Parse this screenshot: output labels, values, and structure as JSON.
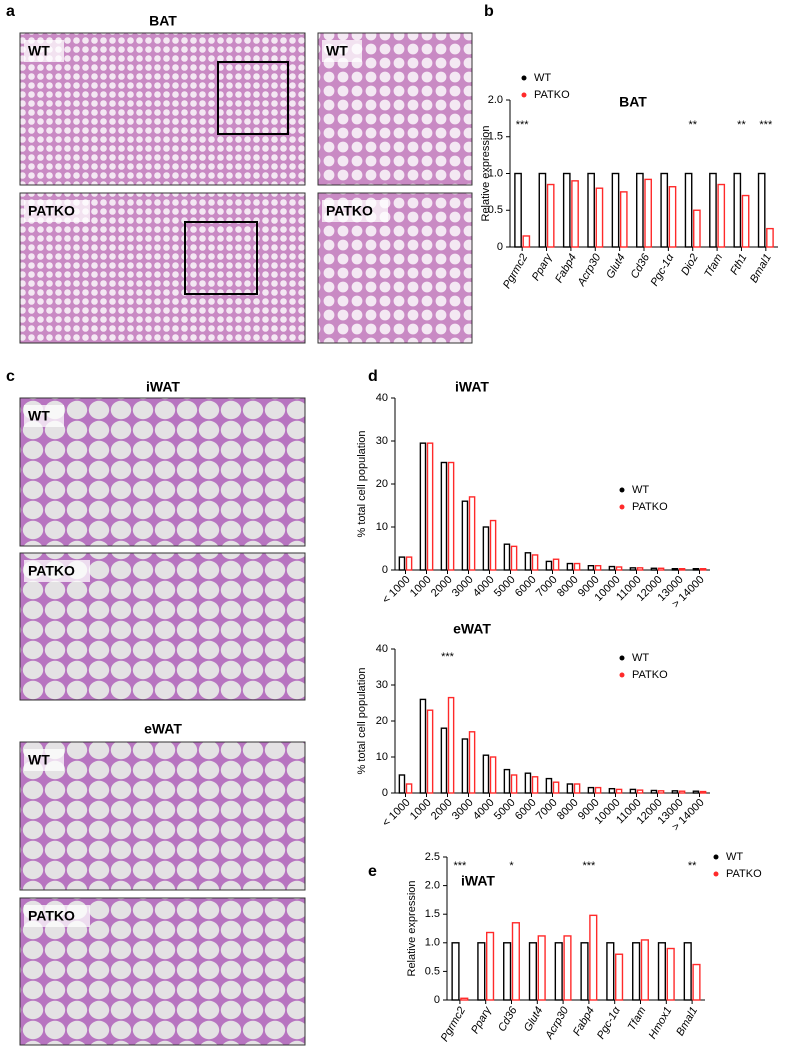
{
  "figure": {
    "panel_labels": [
      "a",
      "b",
      "c",
      "d",
      "e"
    ],
    "a": {
      "title": "BAT",
      "images": [
        "WT",
        "WT",
        "PATKO",
        "PATKO"
      ]
    },
    "c": {
      "titles": [
        "iWAT",
        "eWAT"
      ],
      "images": [
        "WT",
        "PATKO",
        "WT",
        "PATKO"
      ]
    }
  },
  "chart_data": [
    {
      "type": "bar",
      "title": "BAT",
      "ylabel": "Relative expression",
      "categories": [
        "Pgrmc2",
        "Pparγ",
        "Fabp4",
        "Acrp30",
        "Glut4",
        "Cd36",
        "Pgc-1α",
        "Dio2",
        "Tfam",
        "Fth1",
        "Bmal1"
      ],
      "series": [
        {
          "name": "WT",
          "color": "#000000",
          "values": [
            1.0,
            1.0,
            1.0,
            1.0,
            1.0,
            1.0,
            1.0,
            1.0,
            1.0,
            1.0,
            1.0
          ]
        },
        {
          "name": "PATKO",
          "color": "#ff2a2a",
          "values": [
            0.15,
            0.85,
            0.9,
            0.8,
            0.75,
            0.92,
            0.82,
            0.5,
            0.85,
            0.7,
            0.25
          ]
        }
      ],
      "ylim": [
        0,
        2
      ],
      "yticks": [
        0,
        0.5,
        {
          "value": 1,
          "label": "1.0"
        },
        1.5,
        {
          "value": 2,
          "label": "2.0"
        }
      ],
      "legend": "upper left",
      "annotations": [
        {
          "label": "***",
          "category": "Pgrmc2"
        },
        {
          "label": "**",
          "category": "Dio2"
        },
        {
          "label": "**",
          "category": "Fth1"
        },
        {
          "label": "***",
          "category": "Bmal1"
        }
      ]
    },
    {
      "type": "bar",
      "title": "iWAT",
      "ylabel": "% total cell population",
      "categories": [
        "< 1000",
        "1000",
        "2000",
        "3000",
        "4000",
        "5000",
        "6000",
        "7000",
        "8000",
        "9000",
        "10000",
        "11000",
        "12000",
        "13000",
        "> 14000"
      ],
      "series": [
        {
          "name": "WT",
          "color": "#000000",
          "values": [
            3,
            29.5,
            25,
            16,
            10,
            6,
            4,
            2,
            1.5,
            1,
            0.8,
            0.5,
            0.4,
            0.3,
            0.3
          ]
        },
        {
          "name": "PATKO",
          "color": "#ff2a2a",
          "values": [
            3,
            29.5,
            25,
            17,
            11.5,
            5.5,
            3.5,
            2.5,
            1.5,
            1,
            0.7,
            0.5,
            0.4,
            0.3,
            0.3
          ]
        }
      ],
      "ylim": [
        0,
        40
      ],
      "yticks": [
        0,
        10,
        20,
        30,
        40
      ],
      "legend": "right",
      "annotations": []
    },
    {
      "type": "bar",
      "title": "eWAT",
      "ylabel": "% total cell population",
      "categories": [
        "< 1000",
        "1000",
        "2000",
        "3000",
        "4000",
        "5000",
        "6000",
        "7000",
        "8000",
        "9000",
        "10000",
        "11000",
        "12000",
        "13000",
        "> 14000"
      ],
      "series": [
        {
          "name": "WT",
          "color": "#000000",
          "values": [
            5,
            26,
            18,
            15,
            10.5,
            6.5,
            5.5,
            4,
            2.5,
            1.5,
            1.2,
            1,
            0.7,
            0.6,
            0.5
          ]
        },
        {
          "name": "PATKO",
          "color": "#ff2a2a",
          "values": [
            2.5,
            23,
            26.5,
            17,
            10,
            5,
            4.5,
            3,
            2.5,
            1.5,
            1,
            0.8,
            0.6,
            0.5,
            0.4
          ]
        }
      ],
      "ylim": [
        0,
        40
      ],
      "yticks": [
        0,
        10,
        20,
        30,
        40
      ],
      "legend": "right",
      "annotations": [
        {
          "label": "***",
          "category": "2000"
        }
      ]
    },
    {
      "type": "bar",
      "title": "iWAT",
      "ylabel": "Relative expression",
      "categories": [
        "Pgrmc2",
        "Pparγ",
        "Cd36",
        "Glut4",
        "Acrp30",
        "Fabp4",
        "Pgc-1α",
        "Tfam",
        "Hmox1",
        "Bmal1"
      ],
      "series": [
        {
          "name": "WT",
          "color": "#000000",
          "values": [
            1.0,
            1.0,
            1.0,
            1.0,
            1.0,
            1.0,
            1.0,
            1.0,
            1.0,
            1.0
          ]
        },
        {
          "name": "PATKO",
          "color": "#ff2a2a",
          "values": [
            0.03,
            1.18,
            1.35,
            1.12,
            1.12,
            1.48,
            0.8,
            1.05,
            0.9,
            0.62
          ]
        }
      ],
      "ylim": [
        0,
        2.5
      ],
      "yticks": [
        0,
        0.5,
        {
          "value": 1,
          "label": "1.0"
        },
        1.5,
        {
          "value": 2,
          "label": "2.0"
        },
        2.5
      ],
      "legend": "upper right",
      "annotations": [
        {
          "label": "***",
          "category": "Pgrmc2"
        },
        {
          "label": "*",
          "category": "Cd36"
        },
        {
          "label": "***",
          "category": "Fabp4"
        },
        {
          "label": "**",
          "category": "Bmal1"
        }
      ]
    }
  ]
}
